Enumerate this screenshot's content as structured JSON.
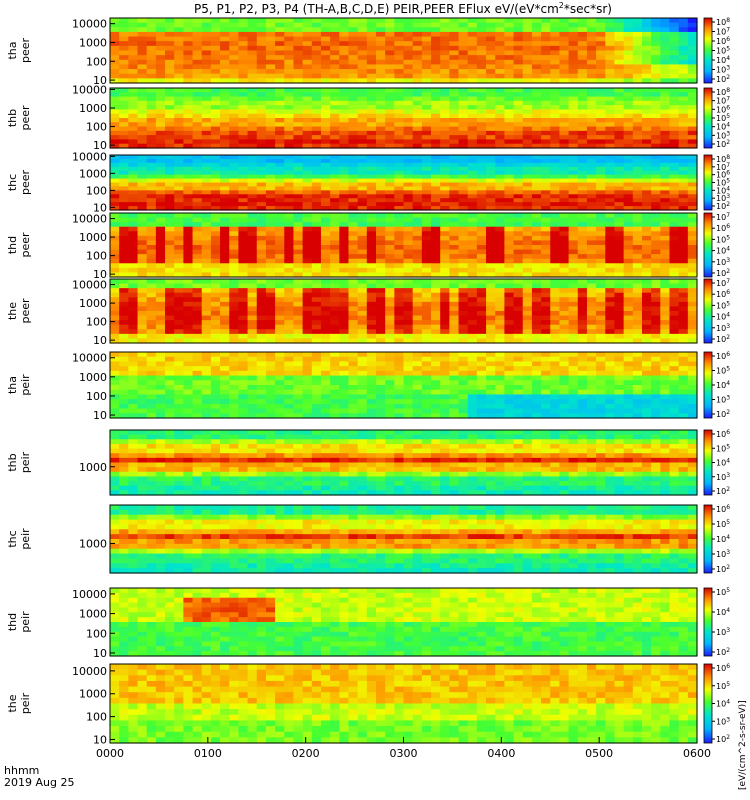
{
  "figure": {
    "title": "P5, P1, P2, P3, P4 (TH-A,B,C,D,E) PEIR,PEER EFlux eV/(eV*cm",
    "title_sup": "2",
    "title_tail": "*sec*sr)",
    "time_label": "hhmm",
    "date_label": "2019 Aug 25",
    "x_ticks": [
      "0000",
      "0100",
      "0200",
      "0300",
      "0400",
      "0500",
      "0600"
    ],
    "colorbar_unit": "[eV/(cm^2-s-sr-eV)]"
  },
  "chart_data": [
    {
      "type": "heatmap",
      "probe": "tha",
      "species": "peer",
      "ylabel": [
        "tha",
        "peer"
      ],
      "yscale": "log",
      "ylim": [
        7,
        20000
      ],
      "y_ticks": [
        "10",
        "100",
        "1000",
        "10000"
      ],
      "colorbar": "log",
      "colorbar_ticks": [
        "10^2",
        "10^3",
        "10^4",
        "10^5",
        "10^6",
        "10^7",
        "10^8"
      ],
      "x_range": [
        "0000",
        "0600"
      ],
      "features": "high flux 100-5000 eV until ~0520, drop-off after ~0530"
    },
    {
      "type": "heatmap",
      "probe": "thb",
      "species": "peer",
      "ylabel": [
        "thb",
        "peer"
      ],
      "yscale": "log",
      "ylim": [
        7,
        12000
      ],
      "y_ticks": [
        "10",
        "100",
        "1000",
        "10000"
      ],
      "colorbar": "log",
      "colorbar_ticks": [
        "10^2",
        "10^3",
        "10^4",
        "10^5",
        "10^6",
        "10^7",
        "10^8"
      ],
      "x_range": [
        "0000",
        "0600"
      ],
      "features": "horizontal bands, peak near 10-100 eV"
    },
    {
      "type": "heatmap",
      "probe": "thc",
      "species": "peer",
      "ylabel": [
        "thc",
        "peer"
      ],
      "yscale": "log",
      "ylim": [
        7,
        12000
      ],
      "y_ticks": [
        "10",
        "100",
        "1000",
        "10000"
      ],
      "colorbar": "log",
      "colorbar_ticks": [
        "10^2",
        "10^3",
        "10^4",
        "10^5",
        "10^6",
        "10^7",
        "10^8"
      ],
      "x_range": [
        "0000",
        "0600"
      ],
      "features": "horizontal bands, peak near 10-30 eV"
    },
    {
      "type": "heatmap",
      "probe": "thd",
      "species": "peer",
      "ylabel": [
        "thd",
        "peer"
      ],
      "yscale": "log",
      "ylim": [
        7,
        20000
      ],
      "y_ticks": [
        "10",
        "100",
        "1000",
        "10000"
      ],
      "colorbar": "log",
      "colorbar_ticks": [
        "10^2",
        "10^3",
        "10^4",
        "10^5",
        "10^6",
        "10^7"
      ],
      "x_range": [
        "0000",
        "0600"
      ],
      "features": "bursty 100-3000 eV"
    },
    {
      "type": "heatmap",
      "probe": "the",
      "species": "peer",
      "ylabel": [
        "the",
        "peer"
      ],
      "yscale": "log",
      "ylim": [
        7,
        20000
      ],
      "y_ticks": [
        "10",
        "100",
        "1000",
        "10000"
      ],
      "colorbar": "log",
      "colorbar_ticks": [
        "10^2",
        "10^3",
        "10^4",
        "10^5",
        "10^6",
        "10^7"
      ],
      "x_range": [
        "0000",
        "0600"
      ],
      "features": "bursty 100-3000 eV"
    },
    {
      "type": "heatmap",
      "probe": "tha",
      "species": "peir",
      "ylabel": [
        "tha",
        "peir"
      ],
      "yscale": "log",
      "ylim": [
        7,
        20000
      ],
      "y_ticks": [
        "10",
        "100",
        "1000",
        "10000"
      ],
      "colorbar": "log",
      "colorbar_ticks": [
        "10^2",
        "10^3",
        "10^4",
        "10^5",
        "10^6"
      ],
      "x_range": [
        "0000",
        "0600"
      ],
      "features": "1000-10000 eV band, noise below 100 eV after ~0340"
    },
    {
      "type": "heatmap",
      "probe": "thb",
      "species": "peir",
      "ylabel": [
        "thb",
        "peir"
      ],
      "yscale": "log",
      "ylim": [
        100,
        20000
      ],
      "y_ticks": [
        "1000"
      ],
      "colorbar": "log",
      "colorbar_ticks": [
        "10^2",
        "10^3",
        "10^4",
        "10^5",
        "10^6"
      ],
      "x_range": [
        "0000",
        "0600"
      ],
      "features": "horizontal bands"
    },
    {
      "type": "heatmap",
      "probe": "thc",
      "species": "peir",
      "ylabel": [
        "thc",
        "peir"
      ],
      "yscale": "log",
      "ylim": [
        100,
        20000
      ],
      "y_ticks": [
        "1000"
      ],
      "colorbar": "log",
      "colorbar_ticks": [
        "10^2",
        "10^3",
        "10^4",
        "10^5",
        "10^6"
      ],
      "x_range": [
        "0000",
        "0600"
      ],
      "features": "horizontal bands"
    },
    {
      "type": "heatmap",
      "probe": "thd",
      "species": "peir",
      "ylabel": [
        "thd",
        "peir"
      ],
      "yscale": "log",
      "ylim": [
        7,
        20000
      ],
      "y_ticks": [
        "10",
        "100",
        "1000",
        "10000"
      ],
      "colorbar": "log",
      "colorbar_ticks": [
        "10^2",
        "10^3",
        "10^4",
        "10^5"
      ],
      "x_range": [
        "0000",
        "0600"
      ],
      "features": "red 300-3000 eV 0100-0200"
    },
    {
      "type": "heatmap",
      "probe": "the",
      "species": "peir",
      "ylabel": [
        "the",
        "peir"
      ],
      "yscale": "log",
      "ylim": [
        7,
        20000
      ],
      "y_ticks": [
        "10",
        "100",
        "1000",
        "10000"
      ],
      "colorbar": "log",
      "colorbar_ticks": [
        "10^2",
        "10^3",
        "10^4",
        "10^5",
        "10^6"
      ],
      "x_range": [
        "0000",
        "0600"
      ],
      "features": "orange 1000-10000 eV"
    }
  ]
}
